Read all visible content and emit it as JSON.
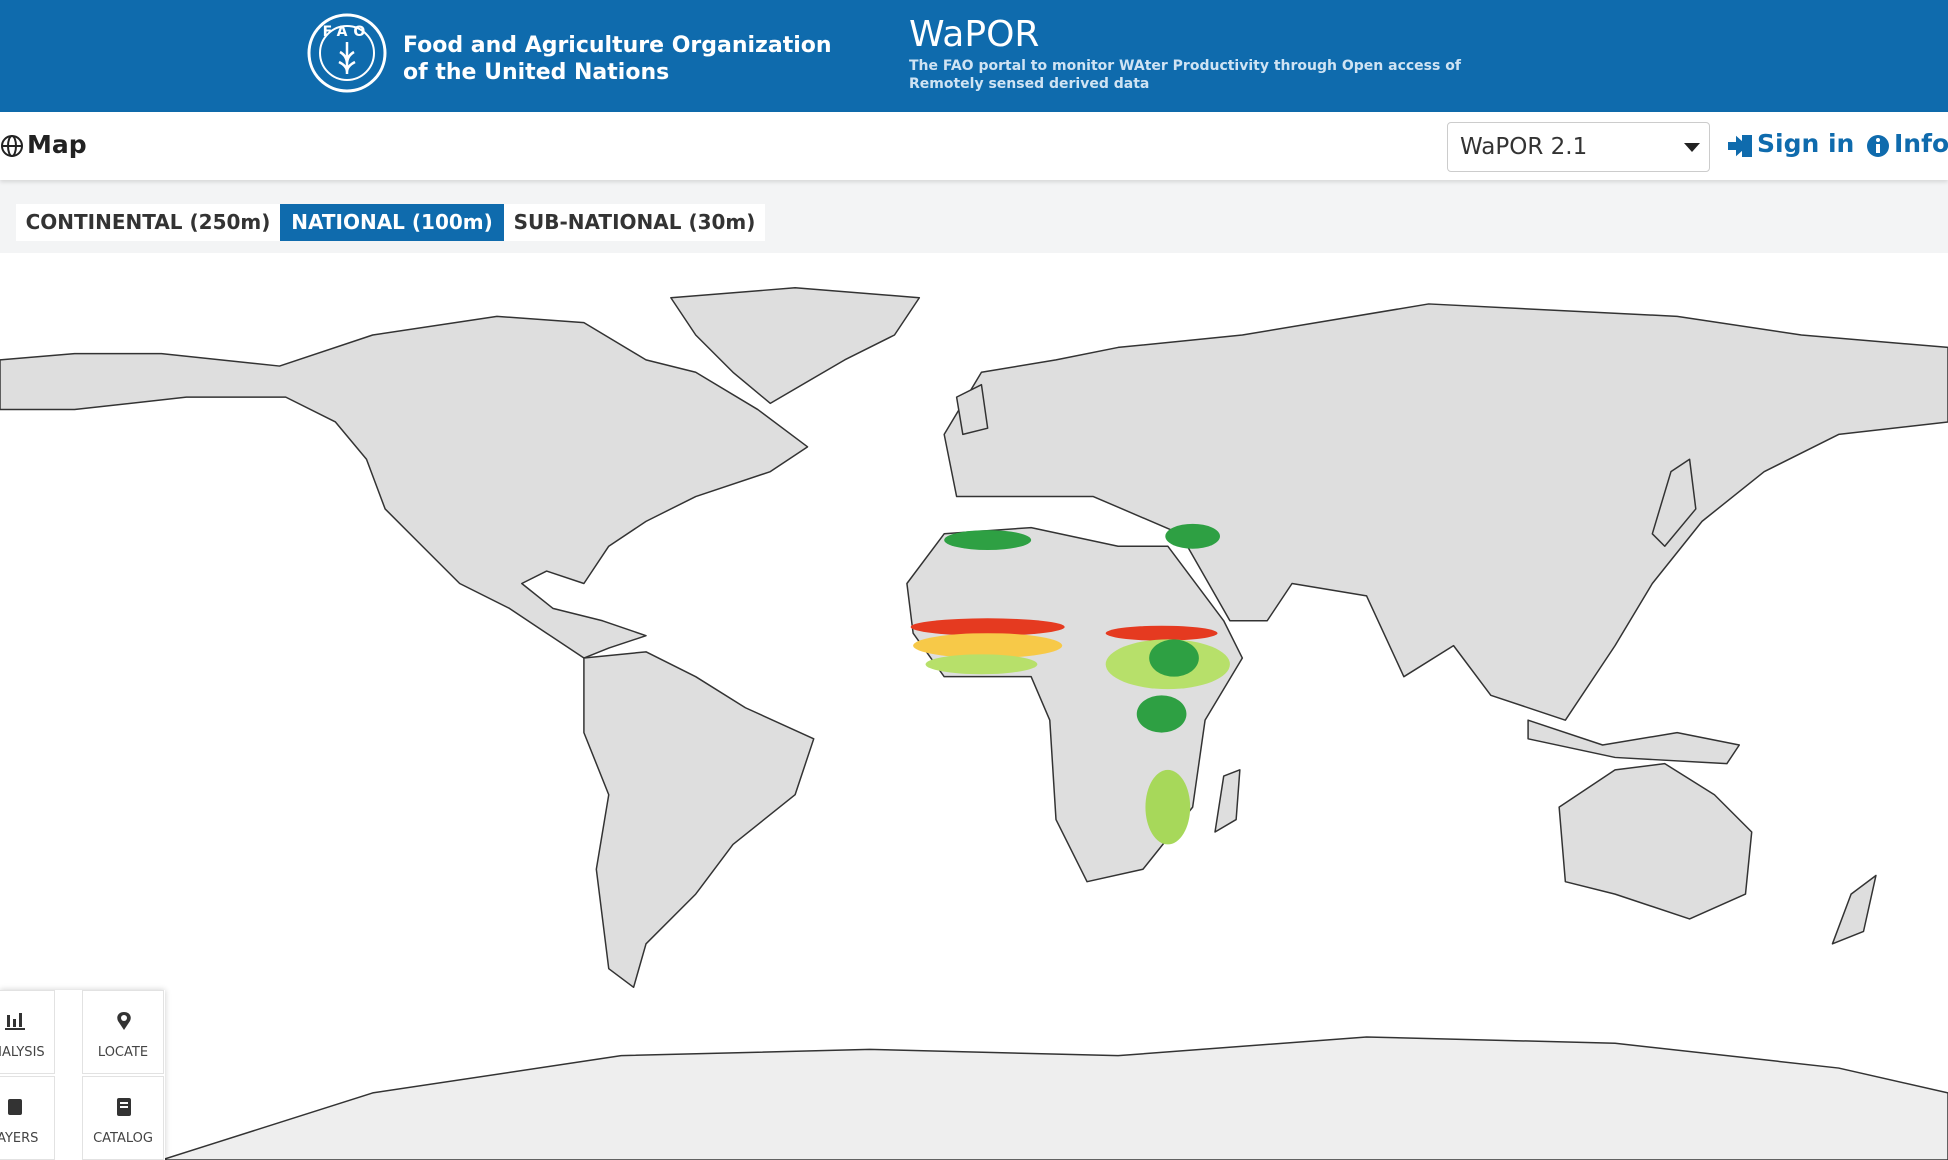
{
  "header": {
    "org_line1": "Food and Agriculture Organization",
    "org_line2": "of the United Nations",
    "logo_text": "FAO",
    "title": "WaPOR",
    "subtitle_line1": "The FAO portal to monitor WAter Productivity through Open access of",
    "subtitle_line2": "Remotely sensed derived data"
  },
  "nav": {
    "page": "Map",
    "version_select": "WaPOR 2.1",
    "sign_in": "Sign in",
    "info": "Info"
  },
  "tabs": [
    "CONTINENTAL (250m)",
    "NATIONAL (100m)",
    "SUB-NATIONAL (30m)"
  ],
  "active_tab": 1,
  "tools": [
    "ANALYSIS",
    "LOCATE",
    "LAYERS",
    "CATALOG"
  ]
}
